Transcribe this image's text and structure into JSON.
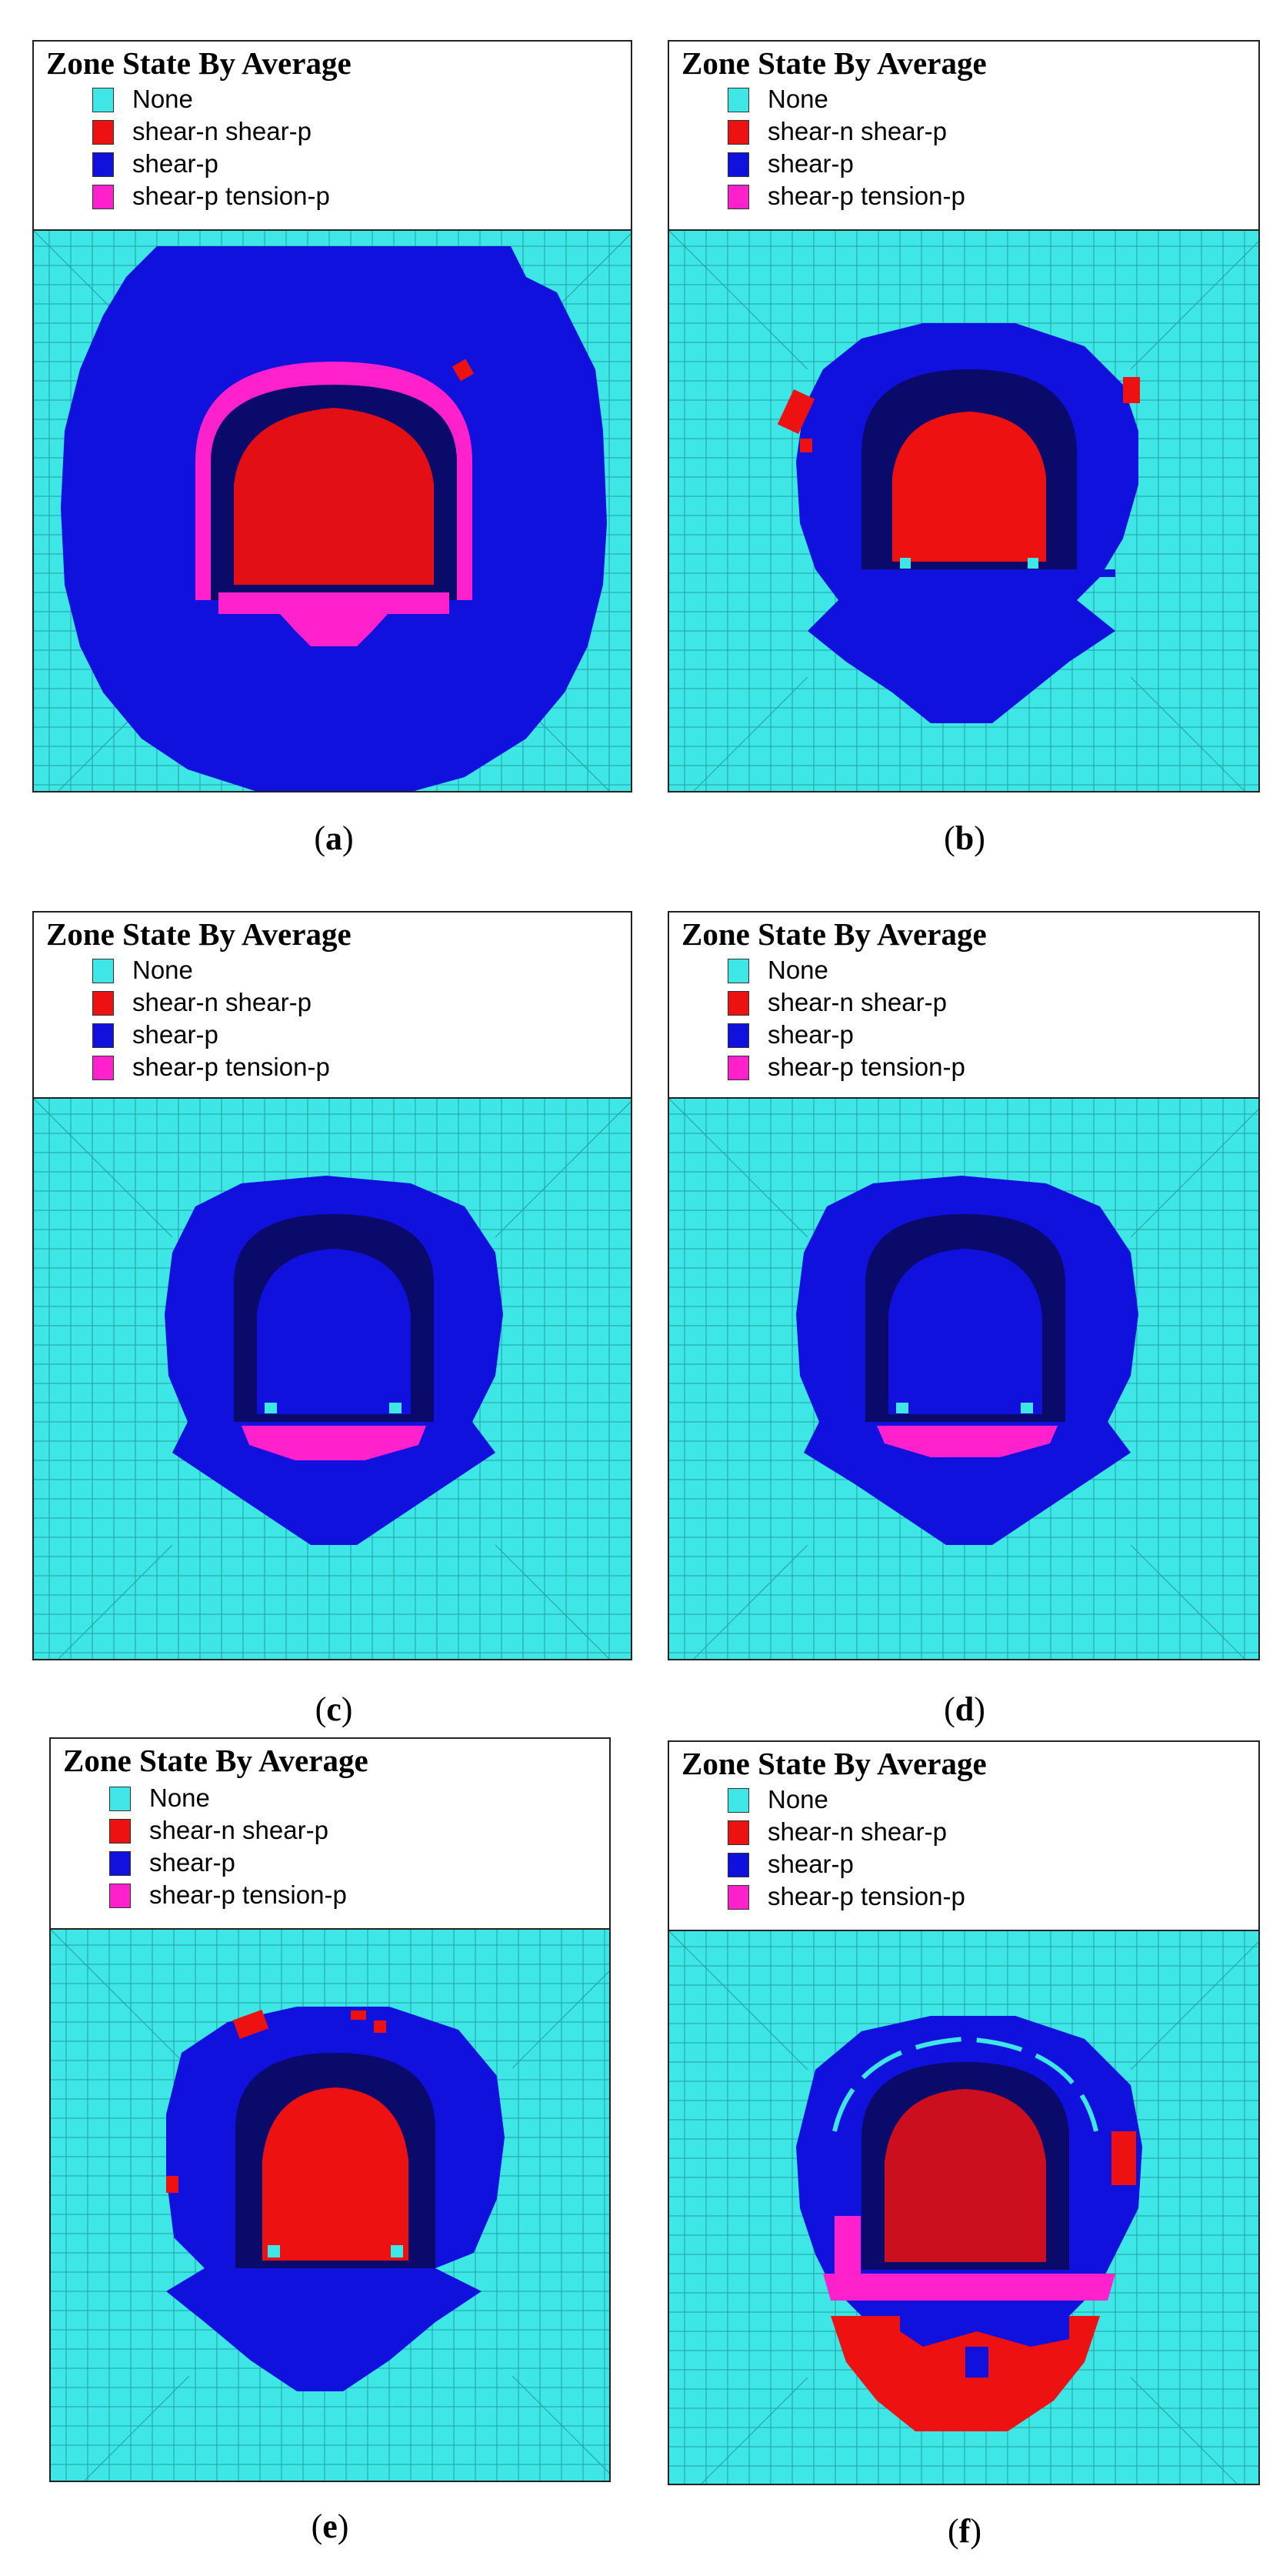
{
  "legend": {
    "title": "Zone State By Average",
    "items": [
      {
        "label": "None",
        "color": "#3ee6e6"
      },
      {
        "label": "shear-n shear-p",
        "color": "#ee1111"
      },
      {
        "label": "shear-p",
        "color": "#1111dd"
      },
      {
        "label": "shear-p tension-p",
        "color": "#ff22cc"
      }
    ]
  },
  "panels": [
    {
      "id": "a",
      "caption_open": "(",
      "caption_letter": "a",
      "caption_close": ")"
    },
    {
      "id": "b",
      "caption_open": "(",
      "caption_letter": "b",
      "caption_close": ")"
    },
    {
      "id": "c",
      "caption_open": "(",
      "caption_letter": "c",
      "caption_close": ")"
    },
    {
      "id": "d",
      "caption_open": "(",
      "caption_letter": "d",
      "caption_close": ")"
    },
    {
      "id": "e",
      "caption_open": "(",
      "caption_letter": "e",
      "caption_close": ")"
    },
    {
      "id": "f",
      "caption_open": "(",
      "caption_letter": "f",
      "caption_close": ")"
    }
  ],
  "colors": {
    "none": "#3ee6e6",
    "mesh_line": "#1a8f8f",
    "shear_p": "#1111dd",
    "tunnel_dark": "#0a0a6a",
    "shear_n_shear_p": "#ee1111",
    "shear_p_tension_p": "#ff22cc"
  }
}
